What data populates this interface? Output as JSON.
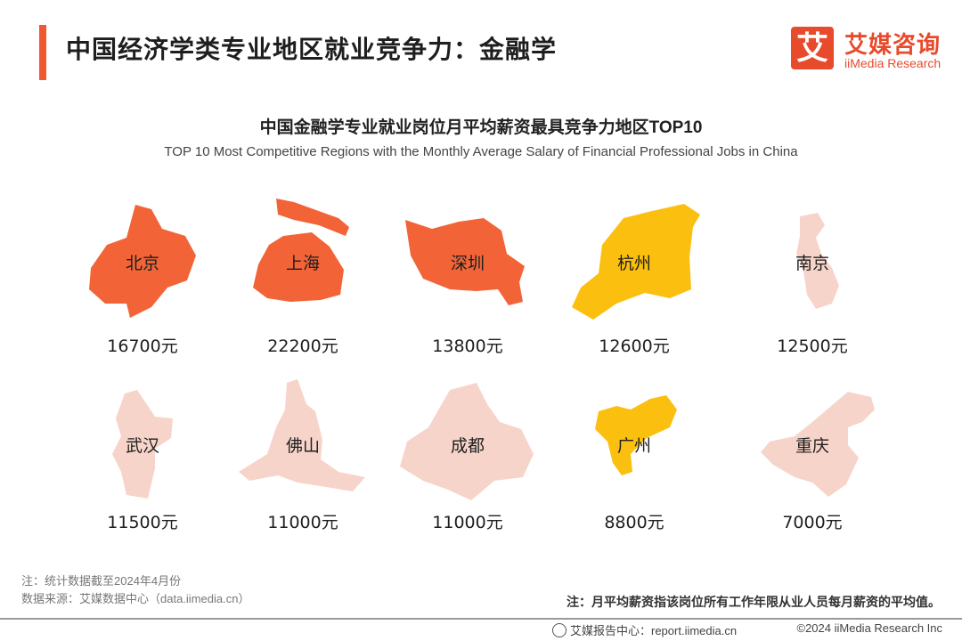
{
  "header": {
    "title": "中国经济学类专业地区就业竞争力：金融学",
    "logo_mark": "艾",
    "logo_cn": "艾媒咨询",
    "logo_en": "iiMedia Research"
  },
  "chart_data": {
    "type": "table",
    "title": "中国金融学专业就业岗位月平均薪资最具竞争力地区TOP10",
    "subtitle": "TOP 10 Most Competitive Regions with the Monthly Average Salary  of Financial Professional Jobs in China",
    "unit": "元",
    "categories": [
      "北京",
      "上海",
      "深圳",
      "杭州",
      "南京",
      "武汉",
      "佛山",
      "成都",
      "广州",
      "重庆"
    ],
    "values": [
      16700,
      22200,
      13800,
      12600,
      12500,
      11500,
      11000,
      11000,
      8800,
      7000
    ],
    "value_labels": [
      "16700元",
      "22200元",
      "13800元",
      "12600元",
      "12500元",
      "11500元",
      "11000元",
      "11000元",
      "8800元",
      "7000元"
    ],
    "colors": {
      "tier_high": "#f26437",
      "tier_mid": "#fbbf0f",
      "tier_low": "#f7d4c9"
    },
    "tiers": [
      "high",
      "high",
      "high",
      "mid",
      "low",
      "low",
      "low",
      "low",
      "mid",
      "low"
    ]
  },
  "notes": {
    "stat_note": "注：统计数据截至2024年4月份",
    "source": "数据来源：艾媒数据中心（data.iimedia.cn）",
    "definition": "注：月平均薪资指该岗位所有工作年限从业人员每月薪资的平均值。"
  },
  "footer": {
    "report_center": "艾媒报告中心：report.iimedia.cn",
    "copyright": "©2024  iiMedia Research  Inc"
  }
}
